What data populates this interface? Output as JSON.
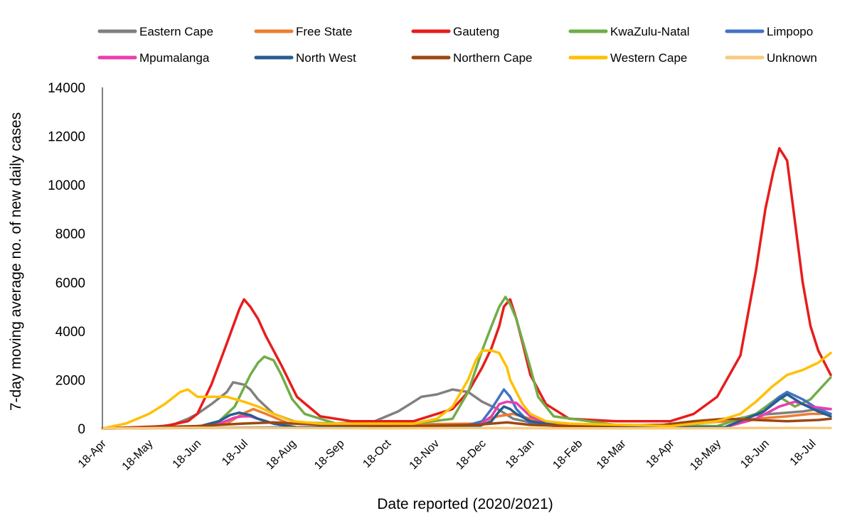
{
  "chart_data": {
    "type": "line",
    "title": "",
    "xlabel": "Date reported (2020/2021)",
    "ylabel": "7-day moving average no. of new daily cases",
    "ylim": [
      0,
      14000
    ],
    "yticks": [
      0,
      2000,
      4000,
      6000,
      8000,
      10000,
      12000,
      14000
    ],
    "ytick_labels": [
      "0",
      "2000",
      "4000",
      "6000",
      "8000",
      "10000",
      "12000",
      "14000"
    ],
    "xlim": [
      0,
      468
    ],
    "xticks": [
      0,
      30,
      61,
      91,
      122,
      153,
      183,
      214,
      244,
      275,
      306,
      334,
      365,
      395,
      426,
      456
    ],
    "xtick_labels": [
      "18-Apr",
      "18-May",
      "18-Jun",
      "18-Jul",
      "18-Aug",
      "18-Sep",
      "18-Oct",
      "18-Nov",
      "18-Dec",
      "18-Jan",
      "18-Feb",
      "18-Mar",
      "18-Apr",
      "18-May",
      "18-Jun",
      "18-Jul"
    ],
    "x_unit": "days from 18-Apr (2020/2021)",
    "grid": false,
    "legend_position": "top",
    "series": [
      {
        "name": "Eastern Cape",
        "color": "#808080",
        "x": [
          0,
          30,
          45,
          55,
          61,
          70,
          80,
          84,
          91,
          95,
          100,
          110,
          125,
          150,
          175,
          190,
          200,
          205,
          210,
          215,
          225,
          235,
          244,
          254,
          264,
          275,
          290,
          320,
          360,
          400,
          420,
          440,
          450,
          460,
          468
        ],
        "y": [
          0,
          50,
          150,
          400,
          600,
          1000,
          1500,
          1900,
          1800,
          1600,
          1200,
          600,
          250,
          200,
          300,
          700,
          1100,
          1300,
          1350,
          1400,
          1600,
          1500,
          1100,
          800,
          400,
          250,
          150,
          100,
          150,
          300,
          550,
          650,
          700,
          800,
          800
        ]
      },
      {
        "name": "Free State",
        "color": "#ED7D31",
        "x": [
          0,
          60,
          80,
          90,
          97,
          105,
          120,
          160,
          240,
          254,
          264,
          275,
          300,
          360,
          420,
          440,
          455,
          468
        ],
        "y": [
          0,
          50,
          200,
          600,
          800,
          600,
          200,
          150,
          200,
          500,
          600,
          400,
          100,
          100,
          400,
          500,
          600,
          600
        ]
      },
      {
        "name": "Gauteng",
        "color": "#E81C1C",
        "x": [
          0,
          40,
          55,
          61,
          70,
          80,
          88,
          91,
          95,
          100,
          105,
          115,
          125,
          140,
          160,
          200,
          225,
          235,
          244,
          250,
          255,
          258,
          262,
          266,
          270,
          275,
          285,
          300,
          330,
          365,
          380,
          395,
          410,
          420,
          426,
          431,
          435,
          440,
          445,
          450,
          455,
          460,
          468
        ],
        "y": [
          0,
          100,
          300,
          600,
          1800,
          3500,
          4900,
          5300,
          5000,
          4500,
          3800,
          2600,
          1300,
          500,
          300,
          300,
          800,
          1500,
          2500,
          3300,
          4200,
          5000,
          5300,
          4500,
          3500,
          2200,
          1000,
          400,
          300,
          300,
          600,
          1300,
          3000,
          6500,
          9000,
          10500,
          11500,
          11000,
          8500,
          6000,
          4200,
          3200,
          2200
        ]
      },
      {
        "name": "KwaZulu-Natal",
        "color": "#70AD47",
        "x": [
          0,
          60,
          75,
          85,
          95,
          100,
          104,
          110,
          115,
          122,
          130,
          150,
          200,
          225,
          235,
          244,
          250,
          255,
          259,
          262,
          266,
          270,
          275,
          280,
          290,
          330,
          395,
          420,
          435,
          445,
          455,
          468
        ],
        "y": [
          0,
          50,
          300,
          900,
          2200,
          2700,
          2950,
          2800,
          2200,
          1200,
          600,
          200,
          200,
          400,
          1500,
          3200,
          4200,
          5000,
          5400,
          5100,
          4500,
          3600,
          2500,
          1300,
          500,
          150,
          100,
          600,
          1300,
          900,
          1200,
          2100
        ]
      },
      {
        "name": "Limpopo",
        "color": "#4472C4",
        "x": [
          0,
          120,
          230,
          244,
          250,
          255,
          258,
          262,
          266,
          275,
          300,
          400,
          425,
          435,
          440,
          450,
          460,
          468
        ],
        "y": [
          0,
          50,
          50,
          300,
          800,
          1300,
          1600,
          1300,
          800,
          200,
          50,
          50,
          700,
          1300,
          1500,
          1200,
          800,
          600
        ]
      },
      {
        "name": "Mpumalanga",
        "color": "#E83FAF",
        "x": [
          0,
          60,
          75,
          85,
          90,
          95,
          100,
          110,
          125,
          240,
          250,
          255,
          260,
          266,
          275,
          290,
          400,
          420,
          435,
          445,
          455,
          468
        ],
        "y": [
          0,
          50,
          200,
          450,
          500,
          500,
          400,
          200,
          50,
          50,
          500,
          1000,
          1100,
          1050,
          500,
          100,
          50,
          400,
          900,
          1100,
          900,
          800
        ]
      },
      {
        "name": "North West",
        "color": "#255E91",
        "x": [
          0,
          60,
          75,
          82,
          88,
          91,
          95,
          100,
          110,
          125,
          240,
          250,
          255,
          258,
          262,
          266,
          275,
          300,
          400,
          425,
          435,
          440,
          450,
          460,
          468
        ],
        "y": [
          0,
          50,
          300,
          550,
          650,
          600,
          550,
          400,
          200,
          50,
          50,
          300,
          700,
          900,
          800,
          600,
          300,
          50,
          50,
          700,
          1200,
          1400,
          1000,
          700,
          500
        ]
      },
      {
        "name": "Northern Cape",
        "color": "#9E480E",
        "x": [
          0,
          60,
          90,
          110,
          140,
          200,
          240,
          250,
          260,
          275,
          300,
          360,
          380,
          400,
          440,
          460,
          468
        ],
        "y": [
          0,
          100,
          200,
          250,
          150,
          100,
          150,
          200,
          250,
          150,
          100,
          150,
          300,
          400,
          300,
          350,
          400
        ]
      },
      {
        "name": "Western Cape",
        "color": "#FFC000",
        "x": [
          0,
          15,
          30,
          40,
          50,
          55,
          61,
          70,
          80,
          91,
          100,
          110,
          122,
          140,
          175,
          200,
          215,
          225,
          235,
          240,
          244,
          250,
          255,
          260,
          262,
          266,
          270,
          275,
          285,
          300,
          365,
          395,
          410,
          420,
          430,
          440,
          450,
          460,
          468
        ],
        "y": [
          0,
          200,
          600,
          1000,
          1500,
          1600,
          1300,
          1300,
          1300,
          1100,
          900,
          600,
          300,
          200,
          200,
          200,
          400,
          900,
          2000,
          2800,
          3200,
          3200,
          3100,
          2500,
          2000,
          1500,
          1000,
          600,
          300,
          200,
          100,
          300,
          600,
          1100,
          1700,
          2200,
          2400,
          2700,
          3100
        ]
      },
      {
        "name": "Unknown",
        "color": "#F8CB7E",
        "x": [
          0,
          60,
          120,
          180,
          240,
          300,
          360,
          420,
          468
        ],
        "y": [
          0,
          30,
          20,
          10,
          20,
          10,
          10,
          20,
          20
        ]
      }
    ]
  }
}
